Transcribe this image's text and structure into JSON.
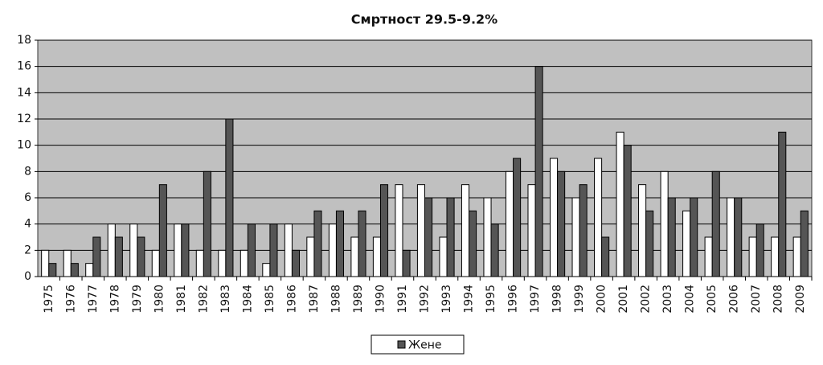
{
  "chart_data": {
    "type": "bar",
    "title": "Смртност 29.5-9.2%",
    "categories": [
      "1975",
      "1976",
      "1977",
      "1978",
      "1979",
      "1980",
      "1981",
      "1982",
      "1983",
      "1984",
      "1985",
      "1986",
      "1987",
      "1988",
      "1989",
      "1990",
      "1991",
      "1992",
      "1993",
      "1994",
      "1995",
      "1996",
      "1997",
      "1998",
      "1999",
      "2000",
      "2001",
      "2002",
      "2003",
      "2004",
      "2005",
      "2006",
      "2007",
      "2008",
      "2009"
    ],
    "series": [
      {
        "color": "#ffffff",
        "values": [
          2,
          2,
          1,
          4,
          4,
          2,
          4,
          2,
          2,
          2,
          1,
          4,
          3,
          4,
          3,
          3,
          7,
          7,
          3,
          7,
          6,
          8,
          7,
          9,
          6,
          9,
          11,
          7,
          8,
          5,
          3,
          6,
          3,
          3,
          3
        ]
      },
      {
        "name": "Жене",
        "color": "#555555",
        "values": [
          1,
          1,
          3,
          3,
          3,
          7,
          4,
          8,
          12,
          4,
          4,
          2,
          5,
          5,
          5,
          7,
          2,
          6,
          6,
          5,
          4,
          9,
          16,
          8,
          7,
          3,
          10,
          5,
          6,
          6,
          8,
          6,
          4,
          11,
          5
        ]
      }
    ],
    "ylim": [
      0,
      18
    ],
    "yticks": [
      0,
      2,
      4,
      6,
      8,
      10,
      12,
      14,
      16,
      18
    ],
    "grid": true,
    "plot_background": "#c0c0c0",
    "legend": "bottom"
  }
}
